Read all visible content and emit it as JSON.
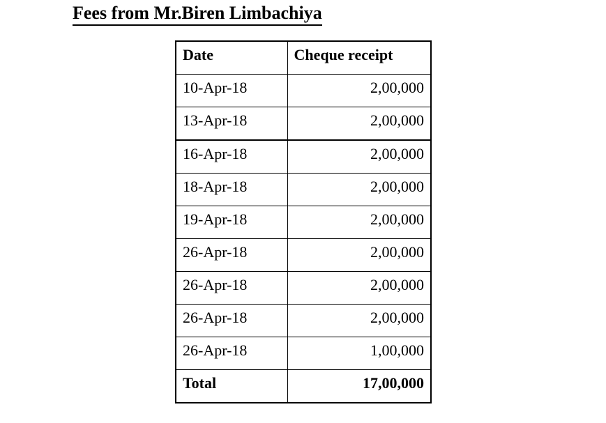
{
  "page": {
    "title": "Fees from Mr.Biren Limbachiya"
  },
  "table": {
    "columns": {
      "date": "Date",
      "amount": "Cheque receipt"
    },
    "rows": [
      {
        "date": "10-Apr-18",
        "amount": "2,00,000"
      },
      {
        "date": "13-Apr-18",
        "amount": "2,00,000"
      },
      {
        "date": "16-Apr-18",
        "amount": "2,00,000"
      },
      {
        "date": "18-Apr-18",
        "amount": "2,00,000"
      },
      {
        "date": "19-Apr-18",
        "amount": "2,00,000"
      },
      {
        "date": "26-Apr-18",
        "amount": "2,00,000"
      },
      {
        "date": "26-Apr-18",
        "amount": "2,00,000"
      },
      {
        "date": "26-Apr-18",
        "amount": "2,00,000"
      },
      {
        "date": "26-Apr-18",
        "amount": "1,00,000"
      }
    ],
    "total": {
      "label": "Total",
      "amount": "17,00,000"
    }
  }
}
